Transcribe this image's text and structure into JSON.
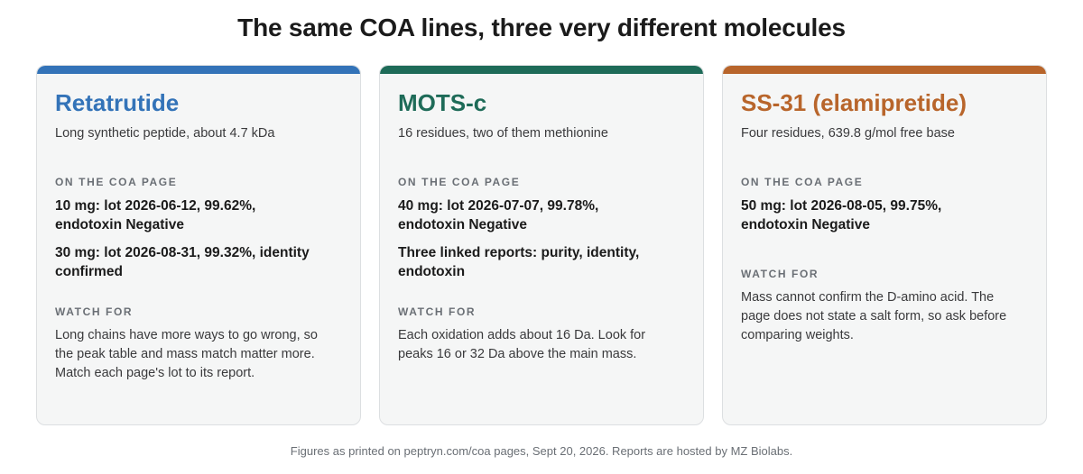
{
  "title": "The same COA lines, three very different molecules",
  "cards": [
    {
      "name": "Retatrutide",
      "subtitle": "Long synthetic peptide, about 4.7 kDa",
      "coa_label": "ON THE COA PAGE",
      "coa_lines": [
        "10 mg: lot 2026-06-12, 99.62%, endotoxin Negative",
        "30 mg: lot 2026-08-31, 99.32%, identity confirmed"
      ],
      "watch_label": "WATCH FOR",
      "watch_text": "Long chains have more ways to go wrong, so the peak table and mass match matter more. Match each page's lot to its report.",
      "accent_color": "#3373b8"
    },
    {
      "name": "MOTS-c",
      "subtitle": "16 residues, two of them methionine",
      "coa_label": "ON THE COA PAGE",
      "coa_lines": [
        "40 mg: lot 2026-07-07, 99.78%, endotoxin Negative",
        "Three linked reports: purity, identity, endotoxin"
      ],
      "watch_label": "WATCH FOR",
      "watch_text": "Each oxidation adds about 16 Da. Look for peaks 16 or 32 Da above the main mass.",
      "accent_color": "#1e6b58"
    },
    {
      "name": "SS-31 (elamipretide)",
      "subtitle": "Four residues, 639.8 g/mol free base",
      "coa_label": "ON THE COA PAGE",
      "coa_lines": [
        "50 mg: lot 2026-08-05, 99.75%, endotoxin Negative"
      ],
      "watch_label": "WATCH FOR",
      "watch_text": "Mass cannot confirm the D-amino acid. The page does not state a salt form, so ask before comparing weights.",
      "accent_color": "#b8652b"
    }
  ],
  "footer": "Figures as printed on peptryn.com/coa pages, Sept 20, 2026. Reports are hosted by MZ Biolabs."
}
